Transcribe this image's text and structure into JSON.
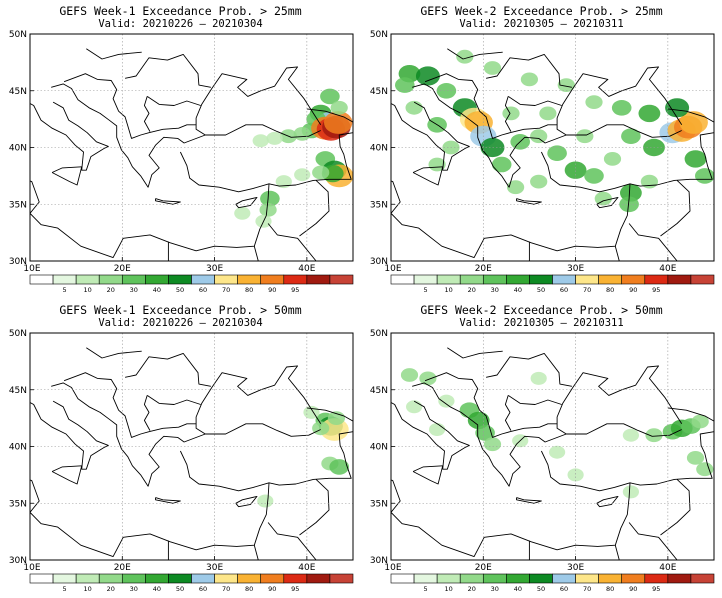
{
  "panels": [
    {
      "title": "GEFS Week-1 Exceedance Prob. > 25mm",
      "valid": "Valid: 20210226 – 20210304",
      "chart_data": {
        "type": "heatmap",
        "xlabels": [
          "10E",
          "20E",
          "30E",
          "40E"
        ],
        "ylabels": [
          "50N",
          "45N",
          "40N",
          "35N",
          "30N"
        ],
        "xlim": [
          10,
          45
        ],
        "ylim": [
          30,
          50
        ],
        "grid": true,
        "cells": [
          {
            "lon": 41.5,
            "lat": 43.0,
            "v": 30
          },
          {
            "lon": 42.5,
            "lat": 42.2,
            "v": 50
          },
          {
            "lon": 41.0,
            "lat": 42.5,
            "v": 20
          },
          {
            "lon": 40.5,
            "lat": 41.5,
            "v": 20
          },
          {
            "lon": 42.0,
            "lat": 41.7,
            "v": 80
          },
          {
            "lon": 42.6,
            "lat": 41.6,
            "v": 90
          },
          {
            "lon": 43.2,
            "lat": 41.8,
            "v": 95
          },
          {
            "lon": 43.4,
            "lat": 42.2,
            "v": 80
          },
          {
            "lon": 39.5,
            "lat": 41.2,
            "v": 10
          },
          {
            "lon": 38.0,
            "lat": 41.0,
            "v": 10
          },
          {
            "lon": 36.5,
            "lat": 40.8,
            "v": 5
          },
          {
            "lon": 35.0,
            "lat": 40.6,
            "v": 5
          },
          {
            "lon": 42.0,
            "lat": 39.0,
            "v": 20
          },
          {
            "lon": 43.0,
            "lat": 38.0,
            "v": 40
          },
          {
            "lon": 43.5,
            "lat": 37.5,
            "v": 70
          },
          {
            "lon": 42.8,
            "lat": 37.7,
            "v": 30
          },
          {
            "lon": 41.5,
            "lat": 37.8,
            "v": 10
          },
          {
            "lon": 39.5,
            "lat": 37.6,
            "v": 5
          },
          {
            "lon": 37.5,
            "lat": 37.0,
            "v": 5
          },
          {
            "lon": 36.0,
            "lat": 35.5,
            "v": 20
          },
          {
            "lon": 35.8,
            "lat": 34.5,
            "v": 10
          },
          {
            "lon": 35.3,
            "lat": 33.5,
            "v": 5
          },
          {
            "lon": 33.0,
            "lat": 34.2,
            "v": 5
          },
          {
            "lon": 42.5,
            "lat": 44.5,
            "v": 20
          },
          {
            "lon": 43.5,
            "lat": 43.5,
            "v": 10
          }
        ]
      }
    },
    {
      "title": "GEFS Week-2 Exceedance Prob. > 25mm",
      "valid": "Valid: 20210305 – 20210311",
      "chart_data": {
        "type": "heatmap",
        "xlabels": [
          "10E",
          "20E",
          "30E",
          "40E"
        ],
        "ylabels": [
          "50N",
          "45N",
          "40N",
          "35N",
          "30N"
        ],
        "xlim": [
          10,
          45
        ],
        "ylim": [
          30,
          50
        ],
        "grid": true,
        "cells": [
          {
            "lon": 12.0,
            "lat": 46.5,
            "v": 30
          },
          {
            "lon": 14.0,
            "lat": 46.3,
            "v": 40
          },
          {
            "lon": 11.5,
            "lat": 45.5,
            "v": 20
          },
          {
            "lon": 16.0,
            "lat": 45.0,
            "v": 20
          },
          {
            "lon": 18.0,
            "lat": 43.5,
            "v": 40
          },
          {
            "lon": 19.0,
            "lat": 42.5,
            "v": 60
          },
          {
            "lon": 19.5,
            "lat": 42.2,
            "v": 70
          },
          {
            "lon": 20.0,
            "lat": 41.0,
            "v": 50
          },
          {
            "lon": 21.0,
            "lat": 40.0,
            "v": 40
          },
          {
            "lon": 15.0,
            "lat": 42.0,
            "v": 20
          },
          {
            "lon": 12.5,
            "lat": 43.5,
            "v": 10
          },
          {
            "lon": 16.5,
            "lat": 40.0,
            "v": 10
          },
          {
            "lon": 15.0,
            "lat": 38.5,
            "v": 10
          },
          {
            "lon": 22.0,
            "lat": 38.5,
            "v": 20
          },
          {
            "lon": 24.0,
            "lat": 40.5,
            "v": 20
          },
          {
            "lon": 26.0,
            "lat": 41.0,
            "v": 10
          },
          {
            "lon": 28.0,
            "lat": 39.5,
            "v": 20
          },
          {
            "lon": 30.0,
            "lat": 38.0,
            "v": 30
          },
          {
            "lon": 32.0,
            "lat": 37.5,
            "v": 20
          },
          {
            "lon": 34.0,
            "lat": 39.0,
            "v": 10
          },
          {
            "lon": 36.0,
            "lat": 41.0,
            "v": 20
          },
          {
            "lon": 38.5,
            "lat": 40.0,
            "v": 30
          },
          {
            "lon": 40.5,
            "lat": 41.3,
            "v": 50
          },
          {
            "lon": 41.5,
            "lat": 41.5,
            "v": 70
          },
          {
            "lon": 42.2,
            "lat": 41.8,
            "v": 80
          },
          {
            "lon": 42.8,
            "lat": 42.2,
            "v": 70
          },
          {
            "lon": 41.0,
            "lat": 43.5,
            "v": 40
          },
          {
            "lon": 38.0,
            "lat": 43.0,
            "v": 30
          },
          {
            "lon": 35.0,
            "lat": 43.5,
            "v": 20
          },
          {
            "lon": 32.0,
            "lat": 44.0,
            "v": 10
          },
          {
            "lon": 29.0,
            "lat": 45.5,
            "v": 10
          },
          {
            "lon": 25.0,
            "lat": 46.0,
            "v": 10
          },
          {
            "lon": 21.0,
            "lat": 47.0,
            "v": 10
          },
          {
            "lon": 18.0,
            "lat": 48.0,
            "v": 10
          },
          {
            "lon": 43.0,
            "lat": 39.0,
            "v": 30
          },
          {
            "lon": 44.0,
            "lat": 37.5,
            "v": 20
          },
          {
            "lon": 36.0,
            "lat": 36.0,
            "v": 30
          },
          {
            "lon": 35.8,
            "lat": 35.0,
            "v": 20
          },
          {
            "lon": 23.5,
            "lat": 36.5,
            "v": 10
          },
          {
            "lon": 26.0,
            "lat": 37.0,
            "v": 10
          },
          {
            "lon": 38.0,
            "lat": 37.0,
            "v": 10
          },
          {
            "lon": 33.0,
            "lat": 35.5,
            "v": 10
          },
          {
            "lon": 27.0,
            "lat": 43.0,
            "v": 10
          },
          {
            "lon": 23.0,
            "lat": 43.0,
            "v": 10
          },
          {
            "lon": 31.0,
            "lat": 41.0,
            "v": 10
          }
        ]
      }
    },
    {
      "title": "GEFS Week-1 Exceedance Prob. > 50mm",
      "valid": "Valid: 20210226 – 20210304",
      "chart_data": {
        "type": "heatmap",
        "xlabels": [
          "10E",
          "20E",
          "30E",
          "40E"
        ],
        "ylabels": [
          "50N",
          "45N",
          "40N",
          "35N",
          "30N"
        ],
        "xlim": [
          10,
          45
        ],
        "ylim": [
          30,
          50
        ],
        "grid": true,
        "cells": [
          {
            "lon": 42.0,
            "lat": 42.3,
            "v": 20
          },
          {
            "lon": 42.6,
            "lat": 41.8,
            "v": 40
          },
          {
            "lon": 43.0,
            "lat": 41.5,
            "v": 60
          },
          {
            "lon": 41.5,
            "lat": 41.6,
            "v": 10
          },
          {
            "lon": 43.2,
            "lat": 42.5,
            "v": 10
          },
          {
            "lon": 42.5,
            "lat": 38.5,
            "v": 10
          },
          {
            "lon": 43.5,
            "lat": 38.2,
            "v": 20
          },
          {
            "lon": 35.5,
            "lat": 35.2,
            "v": 5
          },
          {
            "lon": 40.5,
            "lat": 43.0,
            "v": 5
          }
        ]
      }
    },
    {
      "title": "GEFS Week-2 Exceedance Prob. > 50mm",
      "valid": "Valid: 20210305 – 20210311",
      "chart_data": {
        "type": "heatmap",
        "xlabels": [
          "10E",
          "20E",
          "30E",
          "40E"
        ],
        "ylabels": [
          "50N",
          "45N",
          "40N",
          "35N",
          "30N"
        ],
        "xlim": [
          10,
          45
        ],
        "ylim": [
          30,
          50
        ],
        "grid": true,
        "cells": [
          {
            "lon": 12.0,
            "lat": 46.3,
            "v": 10
          },
          {
            "lon": 14.0,
            "lat": 46.0,
            "v": 10
          },
          {
            "lon": 18.5,
            "lat": 43.2,
            "v": 20
          },
          {
            "lon": 19.5,
            "lat": 42.3,
            "v": 30
          },
          {
            "lon": 20.2,
            "lat": 41.2,
            "v": 20
          },
          {
            "lon": 21.0,
            "lat": 40.2,
            "v": 10
          },
          {
            "lon": 16.0,
            "lat": 44.0,
            "v": 5
          },
          {
            "lon": 15.0,
            "lat": 41.5,
            "v": 5
          },
          {
            "lon": 40.5,
            "lat": 41.3,
            "v": 20
          },
          {
            "lon": 41.5,
            "lat": 41.6,
            "v": 30
          },
          {
            "lon": 42.5,
            "lat": 41.8,
            "v": 20
          },
          {
            "lon": 43.5,
            "lat": 42.2,
            "v": 10
          },
          {
            "lon": 38.5,
            "lat": 41.0,
            "v": 10
          },
          {
            "lon": 36.0,
            "lat": 41.0,
            "v": 5
          },
          {
            "lon": 43.0,
            "lat": 39.0,
            "v": 10
          },
          {
            "lon": 44.0,
            "lat": 38.0,
            "v": 10
          },
          {
            "lon": 30.0,
            "lat": 37.5,
            "v": 5
          },
          {
            "lon": 28.0,
            "lat": 39.5,
            "v": 5
          },
          {
            "lon": 36.0,
            "lat": 36.0,
            "v": 5
          },
          {
            "lon": 24.0,
            "lat": 40.5,
            "v": 5
          },
          {
            "lon": 12.5,
            "lat": 43.5,
            "v": 5
          },
          {
            "lon": 26.0,
            "lat": 46.0,
            "v": 5
          }
        ]
      }
    }
  ],
  "colorbar": {
    "labels": [
      "5",
      "10",
      "20",
      "30",
      "40",
      "50",
      "60",
      "70",
      "80",
      "90",
      "95"
    ],
    "colors": [
      "#ffffff",
      "#e4f7e0",
      "#c0ebb6",
      "#92d98a",
      "#5fc35c",
      "#33a833",
      "#0d8a23",
      "#9ecae8",
      "#fde68a",
      "#f9b233",
      "#f07e1f",
      "#dc2a14",
      "#a01a10",
      "#c74336"
    ]
  }
}
